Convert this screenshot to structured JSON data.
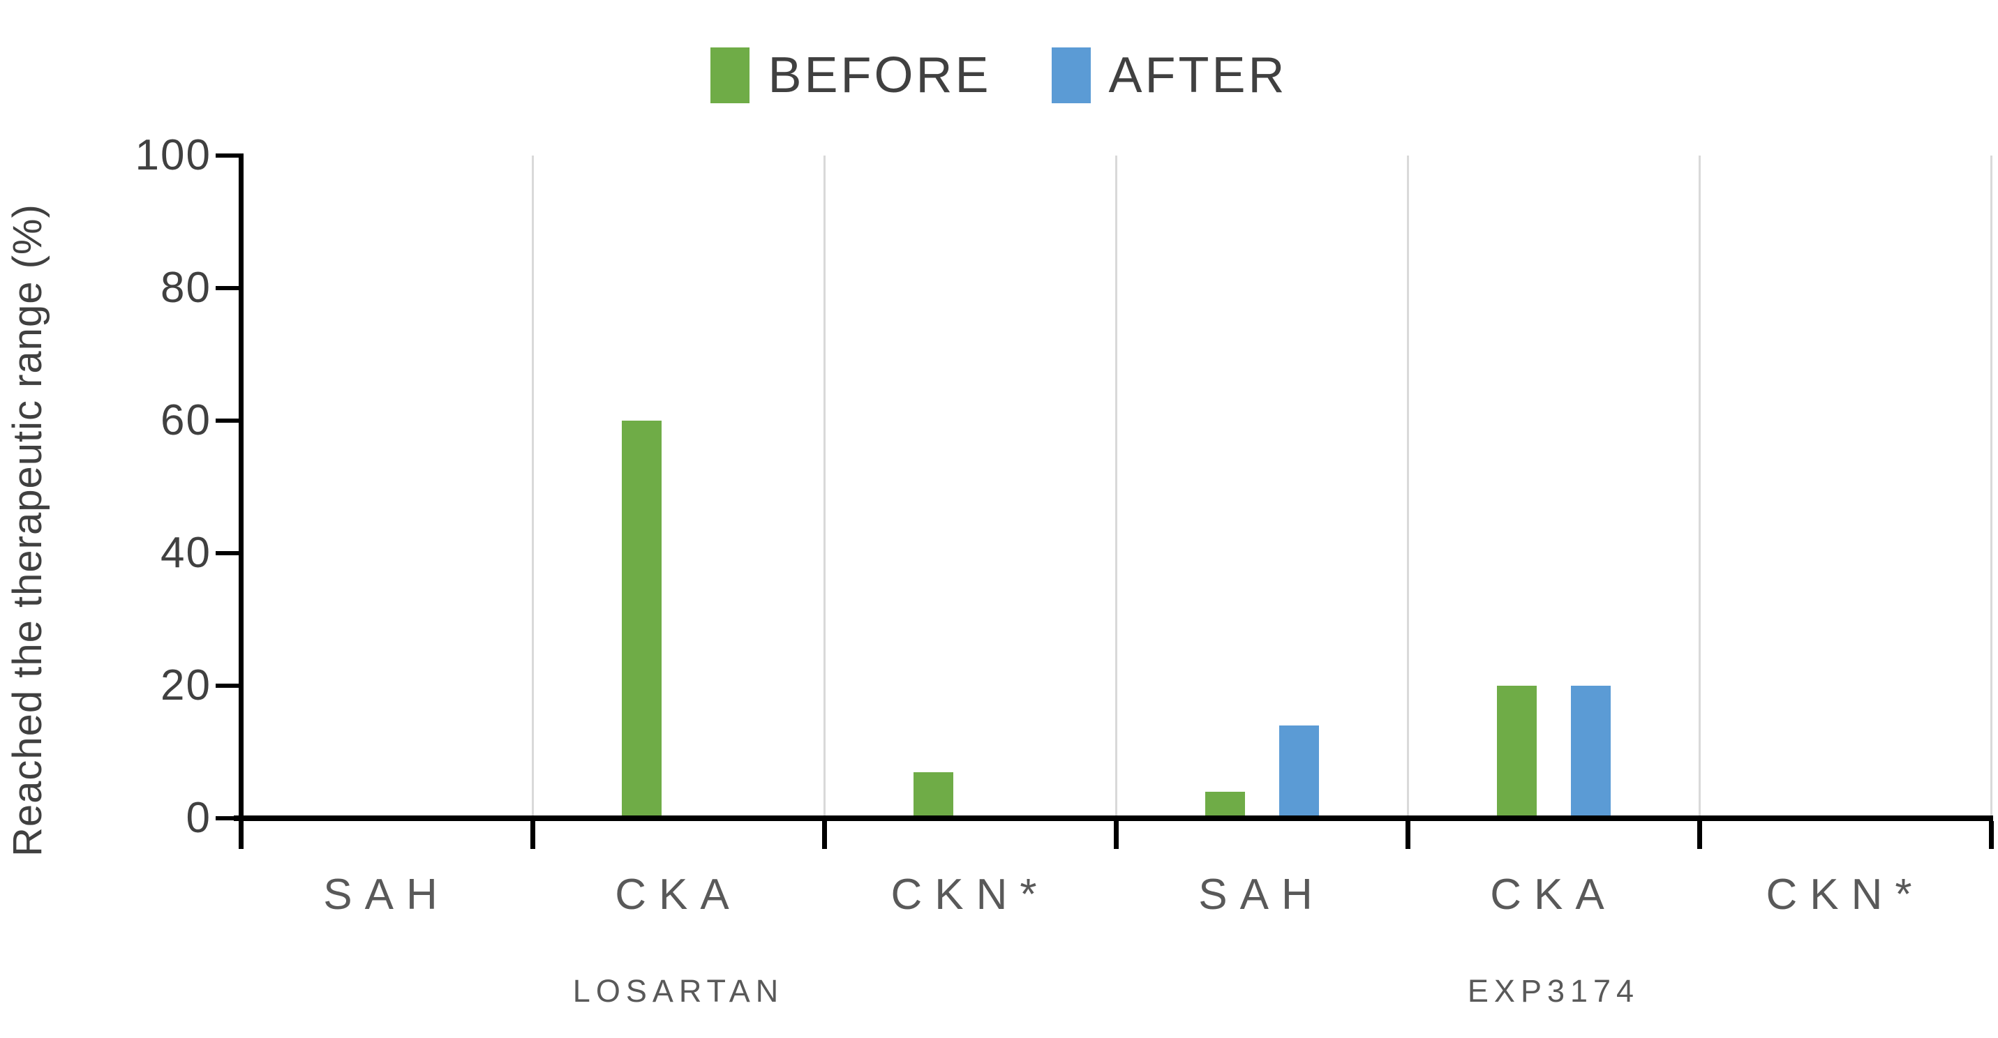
{
  "chart_data": {
    "type": "bar",
    "title": "",
    "xlabel": "",
    "ylabel": "Reached the therapeutic range (%)",
    "ylim": [
      0,
      100
    ],
    "yticks": [
      0,
      20,
      40,
      60,
      80,
      100
    ],
    "grid": "vertical category separators only",
    "legend_position": "top-center",
    "categories": [
      "SAH",
      "CKA",
      "CKN*",
      "SAH",
      "CKA",
      "CKN*"
    ],
    "groups": [
      {
        "label": "LOSARTAN",
        "span": [
          0,
          2
        ]
      },
      {
        "label": "EXP3174",
        "span": [
          3,
          5
        ]
      }
    ],
    "series": [
      {
        "name": "BEFORE",
        "color": "#6FAC47",
        "values": [
          0,
          60,
          7,
          4,
          20,
          0
        ]
      },
      {
        "name": "AFTER",
        "color": "#5B9BD5",
        "values": [
          0,
          0,
          0,
          14,
          20,
          0
        ]
      }
    ]
  },
  "colors": {
    "background": "#FFFFFF",
    "axis": "#000000",
    "gridline": "#D9D9D9",
    "tick_label": "#404040",
    "legend_text": "#404040",
    "y_title": "#404040",
    "category_label": "#595959",
    "group_label": "#595959"
  }
}
